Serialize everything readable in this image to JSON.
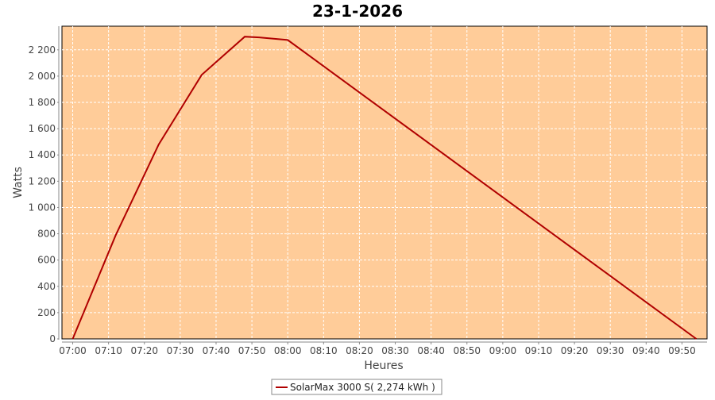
{
  "chart_data": {
    "type": "line",
    "title": "23-1-2026",
    "xlabel": "Heures",
    "ylabel": "Watts",
    "x_ticks": [
      "07:00",
      "07:10",
      "07:20",
      "07:30",
      "07:40",
      "07:50",
      "08:00",
      "08:10",
      "08:20",
      "08:30",
      "08:40",
      "08:50",
      "09:00",
      "09:10",
      "09:20",
      "09:30",
      "09:40",
      "09:50"
    ],
    "y_ticks": [
      0,
      200,
      400,
      600,
      800,
      1000,
      1200,
      1400,
      1600,
      1800,
      2000,
      2200
    ],
    "y_tick_labels": [
      "0",
      "200",
      "400",
      "600",
      "800",
      "1 000",
      "1 200",
      "1 400",
      "1 600",
      "1 800",
      "2 000",
      "2 200"
    ],
    "xlim": [
      "06:57",
      "09:57"
    ],
    "ylim": [
      0,
      2380
    ],
    "grid": true,
    "legend_position": "bottom",
    "plot_background": "#FFCC99",
    "series": [
      {
        "name": "SolarMax 3000 S( 2,274 kWh )",
        "color": "#B00000",
        "x": [
          "07:00",
          "07:12",
          "07:24",
          "07:36",
          "07:48",
          "07:52",
          "07:56",
          "08:00",
          "09:54"
        ],
        "y": [
          0,
          790,
          1480,
          2010,
          2300,
          2295,
          2285,
          2275,
          0
        ]
      }
    ]
  }
}
